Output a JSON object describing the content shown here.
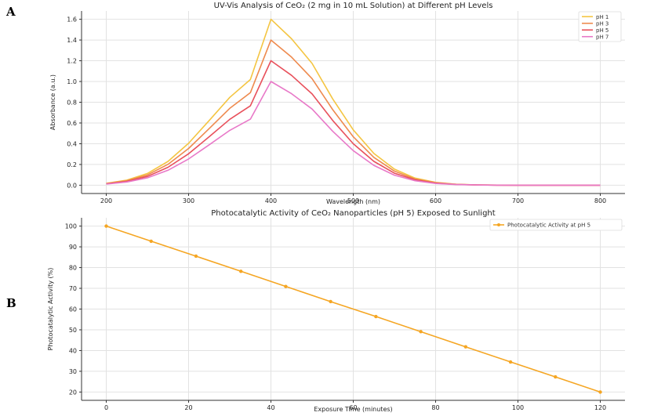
{
  "panel_labels": {
    "a": "A",
    "b": "B"
  },
  "chart_data": [
    {
      "type": "line",
      "title": "UV-Vis Analysis of CeO₂ (2 mg in 10 mL Solution) at Different pH Levels",
      "xlabel": "Wavelength (nm)",
      "ylabel": "Absorbance (a.u.)",
      "xlim": [
        170,
        830
      ],
      "ylim": [
        -0.08,
        1.68
      ],
      "xticks": [
        200,
        300,
        400,
        500,
        600,
        700,
        800
      ],
      "yticks": [
        0.0,
        0.2,
        0.4,
        0.6,
        0.8,
        1.0,
        1.2,
        1.4,
        1.6
      ],
      "ytick_labels": [
        "0.0",
        "0.2",
        "0.4",
        "0.6",
        "0.8",
        "1.0",
        "1.2",
        "1.4",
        "1.6"
      ],
      "grid": true,
      "legend_position": "top-right",
      "x": [
        200,
        225,
        250,
        275,
        300,
        325,
        350,
        375,
        400,
        425,
        450,
        475,
        500,
        525,
        550,
        575,
        600,
        625,
        650,
        675,
        700,
        725,
        750,
        775,
        800
      ],
      "series": [
        {
          "name": "pH 1",
          "color": "#f4c542",
          "values": [
            0.018,
            0.049,
            0.113,
            0.23,
            0.404,
            0.624,
            0.847,
            1.019,
            1.6,
            1.412,
            1.174,
            0.832,
            0.533,
            0.306,
            0.155,
            0.069,
            0.027,
            0.009,
            0.003,
            0.001,
            0.0,
            0.0,
            0.0,
            0.0,
            0.0
          ]
        },
        {
          "name": "pH 3",
          "color": "#ee8a4e",
          "values": [
            0.015,
            0.043,
            0.099,
            0.202,
            0.354,
            0.546,
            0.741,
            0.892,
            1.4,
            1.235,
            1.027,
            0.728,
            0.467,
            0.268,
            0.136,
            0.06,
            0.024,
            0.008,
            0.002,
            0.001,
            0.0,
            0.0,
            0.0,
            0.0,
            0.0
          ]
        },
        {
          "name": "pH 5",
          "color": "#e8505b",
          "values": [
            0.013,
            0.037,
            0.085,
            0.173,
            0.303,
            0.468,
            0.635,
            0.765,
            1.2,
            1.059,
            0.88,
            0.624,
            0.4,
            0.23,
            0.116,
            0.052,
            0.02,
            0.007,
            0.002,
            0.001,
            0.0,
            0.0,
            0.0,
            0.0,
            0.0
          ]
        },
        {
          "name": "pH 7",
          "color": "#e879c8",
          "values": [
            0.011,
            0.031,
            0.071,
            0.144,
            0.253,
            0.39,
            0.529,
            0.637,
            1.0,
            0.882,
            0.734,
            0.52,
            0.333,
            0.191,
            0.097,
            0.043,
            0.017,
            0.006,
            0.002,
            0.0,
            0.0,
            0.0,
            0.0,
            0.0,
            0.0
          ]
        }
      ]
    },
    {
      "type": "line",
      "title": "Photocatalytic Activity of CeO₂ Nanoparticles (pH 5) Exposed to Sunlight",
      "xlabel": "Exposure Time (minutes)",
      "ylabel": "Photocatalytic Activity (%)",
      "xlim": [
        -6,
        126
      ],
      "ylim": [
        16,
        104
      ],
      "xticks": [
        0,
        20,
        40,
        60,
        80,
        100,
        120
      ],
      "yticks": [
        20,
        30,
        40,
        50,
        60,
        70,
        80,
        90,
        100
      ],
      "grid": true,
      "legend_position": "top-right",
      "x": [
        0,
        10.9,
        21.8,
        32.7,
        43.6,
        54.5,
        65.5,
        76.4,
        87.3,
        98.2,
        109.1,
        120
      ],
      "series": [
        {
          "name": "Photocatalytic Activity at pH 5",
          "color": "#f5a623",
          "marker": "circle",
          "values": [
            100.0,
            92.7,
            85.5,
            78.2,
            70.9,
            63.6,
            56.4,
            49.1,
            41.8,
            34.5,
            27.3,
            20.0
          ]
        }
      ]
    }
  ]
}
